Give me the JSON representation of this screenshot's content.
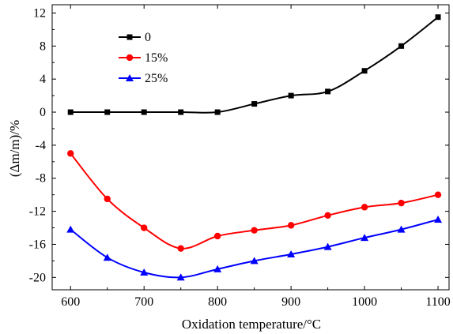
{
  "chart_data": {
    "type": "line",
    "xlabel": "Oxidation temperature/°C",
    "ylabel": "(Δm/m)/%",
    "xlim": [
      575,
      1115
    ],
    "ylim": [
      -21.5,
      13
    ],
    "x_ticks": [
      600,
      700,
      800,
      900,
      1000,
      1100
    ],
    "x_tick_labels": [
      "600",
      "700",
      "800",
      "900",
      "1000",
      "1100"
    ],
    "y_ticks": [
      12,
      8,
      4,
      0,
      -4,
      -8,
      -12,
      -16,
      -20
    ],
    "y_tick_labels": [
      "12",
      "8",
      "4",
      "0",
      "-4",
      "-8",
      "-12",
      "-16",
      "-20"
    ],
    "legend_position": "top-left",
    "series": [
      {
        "name": "0",
        "color": "#000000",
        "marker": "square",
        "x": [
          600,
          650,
          700,
          750,
          800,
          850,
          900,
          950,
          1000,
          1050,
          1100
        ],
        "y": [
          0,
          0,
          0,
          0,
          0,
          1,
          2,
          2.5,
          5,
          8,
          11.5
        ]
      },
      {
        "name": "15%",
        "color": "#ff0000",
        "marker": "circle",
        "x": [
          600,
          650,
          700,
          750,
          800,
          850,
          900,
          950,
          1000,
          1050,
          1100
        ],
        "y": [
          -5,
          -10.5,
          -14,
          -16.5,
          -15,
          -14.3,
          -13.7,
          -12.5,
          -11.5,
          -11,
          -10
        ]
      },
      {
        "name": "25%",
        "color": "#0000ff",
        "marker": "triangle",
        "x": [
          600,
          650,
          700,
          750,
          800,
          850,
          900,
          950,
          1000,
          1050,
          1100
        ],
        "y": [
          -14.2,
          -17.6,
          -19.4,
          -20,
          -19,
          -18,
          -17.2,
          -16.3,
          -15.2,
          -14.2,
          -13
        ]
      }
    ]
  }
}
